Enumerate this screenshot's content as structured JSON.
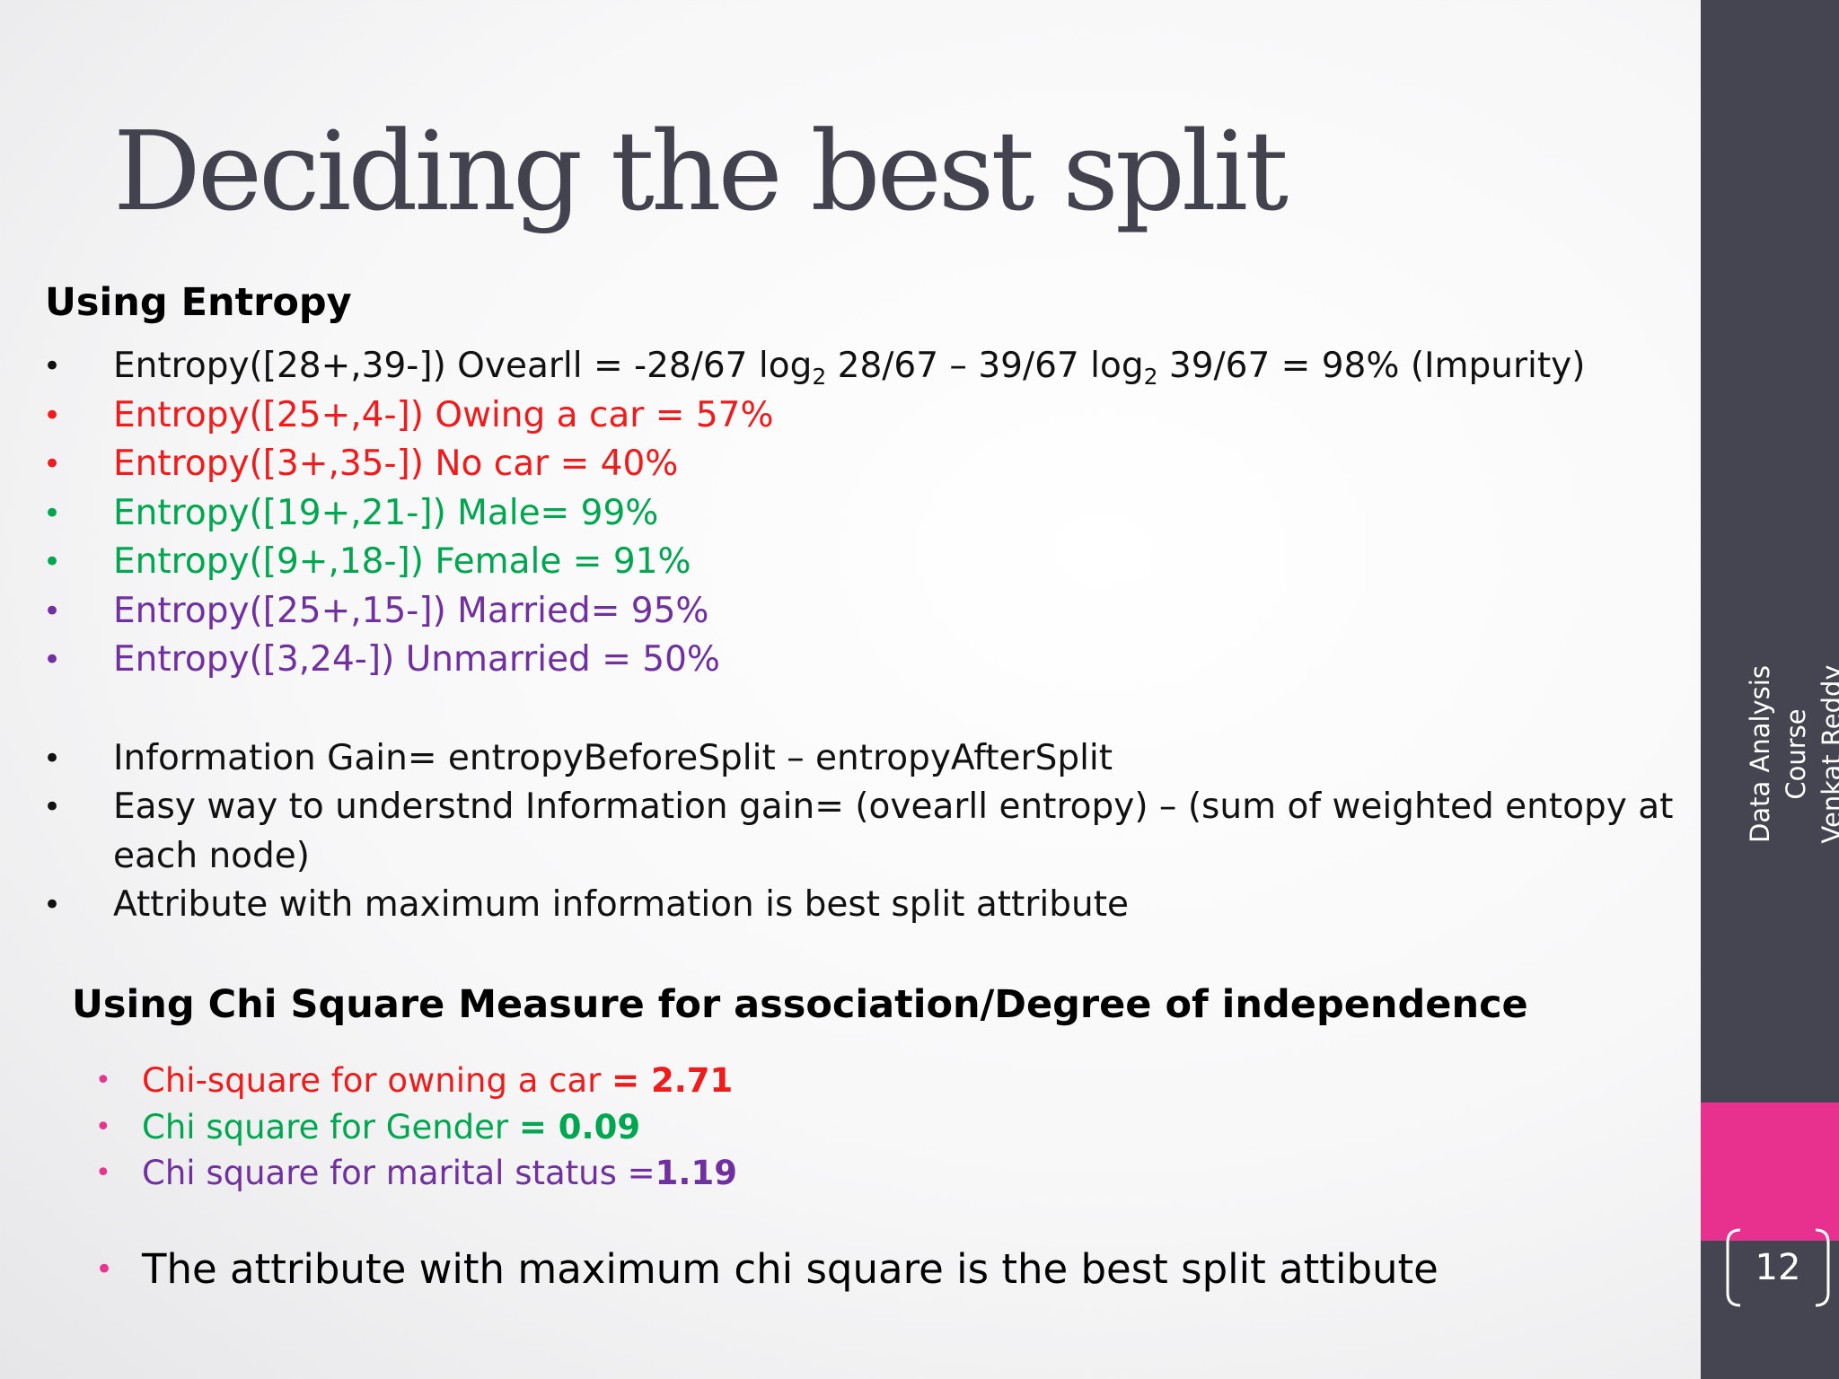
{
  "slide": {
    "title": "Deciding the best split",
    "section1_heading": "Using Entropy",
    "entropy_items": [
      {
        "pre": "Entropy([28+,39-]) Ovearll = -28/67 log",
        "sub1": "2",
        "mid": " 28/67 – 39/67 log",
        "sub2": "2",
        "post": " 39/67 = 98% (Impurity)"
      },
      {
        "text": "Entropy([25+,4-]) Owing a car = 57%"
      },
      {
        "text": "Entropy([3+,35-]) No car = 40%"
      },
      {
        "text": "Entropy([19+,21-]) Male= 99%"
      },
      {
        "text": "Entropy([9+,18-]) Female = 91%"
      },
      {
        "text": "Entropy([25+,15-]) Married= 95%"
      },
      {
        "text": "Entropy([3,24-]) Unmarried = 50%"
      }
    ],
    "info_items": [
      {
        "text": "Information Gain= entropyBeforeSplit – entropyAfterSplit"
      },
      {
        "text": "Easy way to understnd Information gain= (ovearll entropy) – (sum of weighted entopy at each node)"
      },
      {
        "text": "Attribute with maximum information is best split attribute"
      }
    ],
    "section2_heading": "Using Chi Square Measure for association/Degree of independence",
    "chi_items": [
      {
        "label": "Chi-square for owning a car ",
        "value": "= 2.71"
      },
      {
        "label": "Chi square for Gender ",
        "value": "= 0.09"
      },
      {
        "label": "Chi square for marital status =",
        "value": "1.19"
      }
    ],
    "final_text": "The  attribute with maximum chi square is the best split attibute",
    "bullet_char": "•"
  },
  "footer": {
    "course": "Data Analysis Course",
    "author": "Venkat Reddy",
    "page_number": "12"
  },
  "colors": {
    "red": "#ee1c1c",
    "green": "#00a650",
    "purple": "#7030a0",
    "sidebar": "#454551",
    "accent_pink": "#e8308f",
    "title": "#434350"
  }
}
